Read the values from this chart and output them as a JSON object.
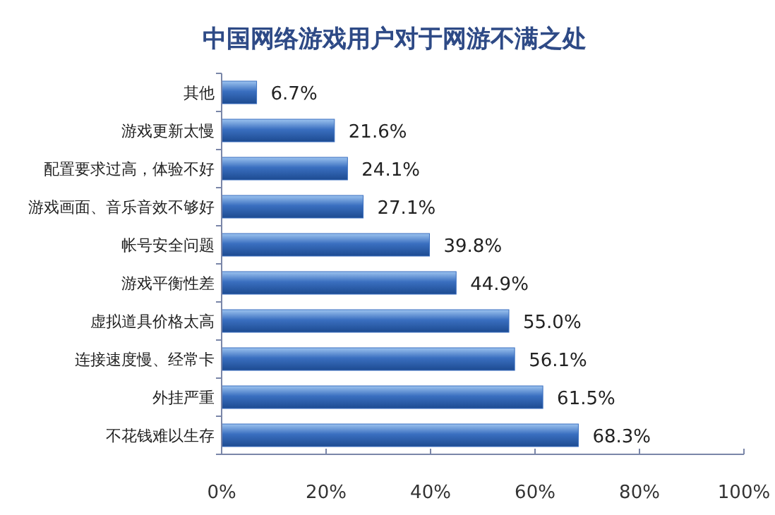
{
  "chart_data": {
    "type": "bar",
    "orientation": "horizontal",
    "title": "中国网络游戏用户对于网游不满之处",
    "categories": [
      "其他",
      "游戏更新太慢",
      "配置要求过高，体验不好",
      "游戏画面、音乐音效不够好",
      "帐号安全问题",
      "游戏平衡性差",
      "虚拟道具价格太高",
      "连接速度慢、经常卡",
      "外挂严重",
      "不花钱难以生存"
    ],
    "values": [
      6.7,
      21.6,
      24.1,
      27.1,
      39.8,
      44.9,
      55.0,
      56.1,
      61.5,
      68.3
    ],
    "value_labels": [
      "6.7%",
      "21.6%",
      "24.1%",
      "27.1%",
      "39.8%",
      "44.9%",
      "55.0%",
      "56.1%",
      "61.5%",
      "68.3%"
    ],
    "color": "#3a6fc0",
    "xlim": [
      0,
      100
    ],
    "xticks": [
      {
        "value": 0,
        "label": "0%"
      },
      {
        "value": 20,
        "label": "20%"
      },
      {
        "value": 40,
        "label": "40%"
      },
      {
        "value": 60,
        "label": "60%"
      },
      {
        "value": 80,
        "label": "80%"
      },
      {
        "value": 100,
        "label": "100%"
      }
    ],
    "grid": false
  }
}
